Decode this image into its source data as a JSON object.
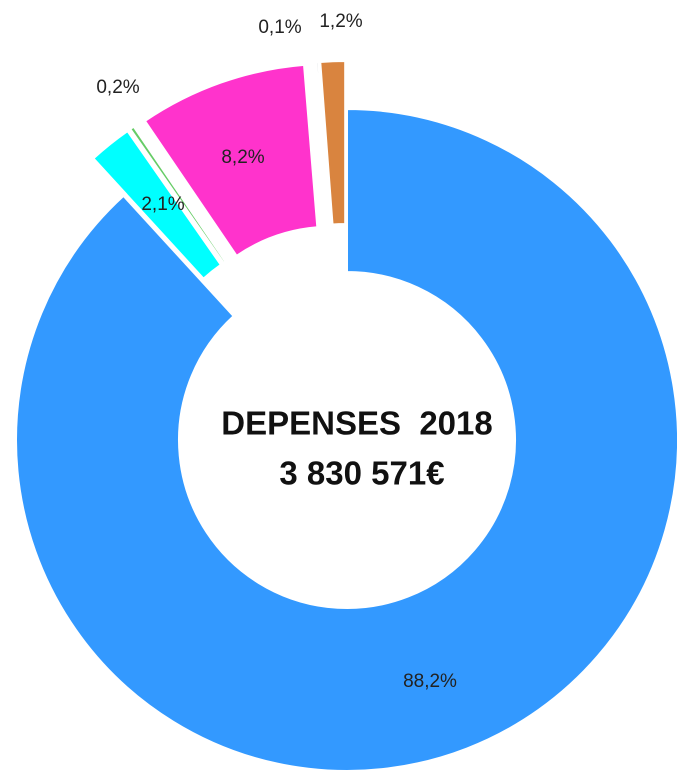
{
  "chart_data": {
    "type": "pie",
    "donut": true,
    "categories": [
      null,
      null,
      null,
      null,
      null,
      null
    ],
    "values": [
      88.2,
      2.1,
      0.2,
      8.2,
      0.1,
      1.2
    ],
    "value_labels": [
      "88,2%",
      "2,1%",
      "0,2%",
      "8,2%",
      "0,1%",
      "1,2%"
    ],
    "colors": [
      "#3399ff",
      "#00ffff",
      "#66cc66",
      "#ff33cc",
      "#596b73",
      "#d9843f"
    ],
    "center_text": [
      "DEPENSES  2018",
      "3 830 571€"
    ]
  }
}
